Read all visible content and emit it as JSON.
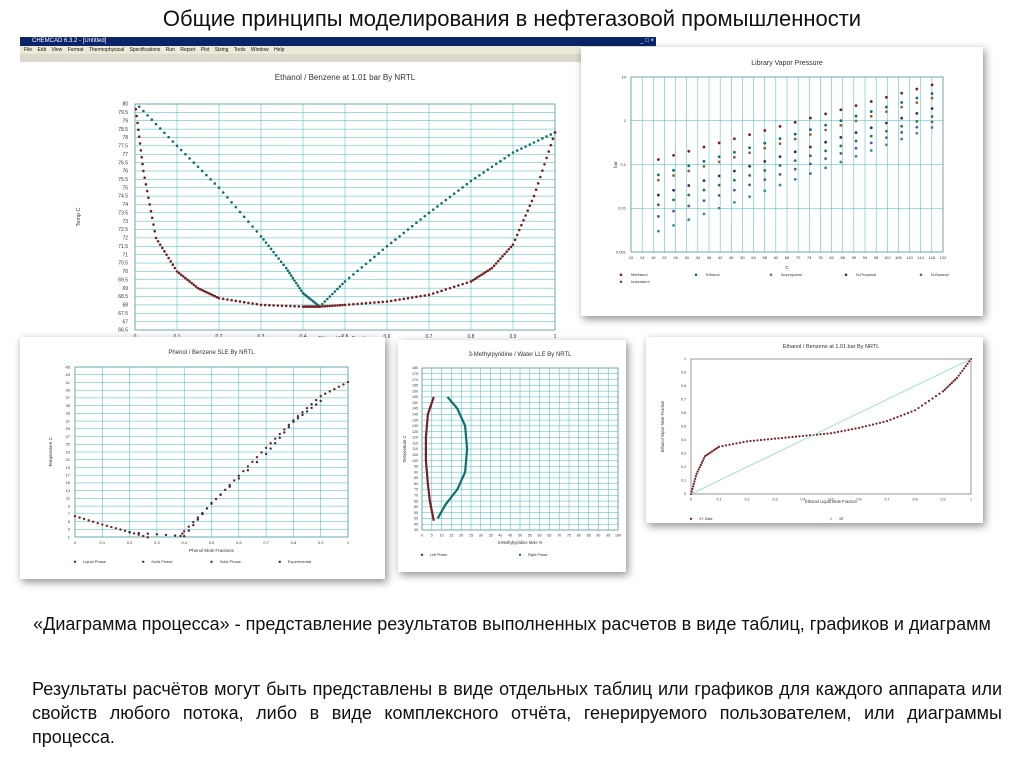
{
  "slide": {
    "title": "Общие принципы моделирования в нефтегазовой промышленности",
    "caption": "«Диаграмма процесса» - представление результатов выполненных расчетов в виде таблиц, графиков и диаграмм",
    "body": "Результаты расчётов могут быть представлены в виде отдельных таблиц или графиков для каждого аппарата или свойств любого потока, либо в виде комплексного отчёта, генерируемого пользователем, или диаграммы процесса."
  },
  "app_window": {
    "title": "CHEMCAD 6.3.2 - [Untitled]",
    "menu": [
      "File",
      "Edit",
      "View",
      "Format",
      "Thermophysical",
      "Specifications",
      "Run",
      "Report",
      "Plot",
      "Sizing",
      "Tools",
      "Window",
      "Help"
    ]
  },
  "colors": {
    "teal": "#0f6e6e",
    "red": "#7a1f1f",
    "grid": "#3fb8bd",
    "panel_title": "#333333"
  },
  "chart_data": [
    {
      "id": "ethanol-benzene-txy",
      "type": "line",
      "title": "Ethanol / Benzene at      1.01 bar By NRTL",
      "xlabel": "Ethanol Mole Fraction",
      "ylabel": "Temp C",
      "xlim": [
        0,
        1
      ],
      "ylim": [
        66.5,
        80
      ],
      "x_ticks": [
        "0",
        "0.1",
        "0.2",
        "0.3",
        "0.4",
        "0.5",
        "0.6",
        "0.7",
        "0.8",
        "0.9",
        "1"
      ],
      "y_ticks": [
        "80",
        "79.5",
        "79",
        "78.5",
        "78",
        "77.5",
        "77",
        "76.5",
        "76",
        "75.5",
        "75",
        "74.5",
        "74",
        "73.5",
        "73",
        "72.5",
        "72",
        "71.5",
        "71",
        "70.5",
        "70",
        "69.5",
        "69",
        "68.5",
        "68",
        "67.5",
        "67",
        "66.5"
      ],
      "grid": true,
      "series": [
        {
          "role": "vapor",
          "color": "#0f6e6e",
          "x": [
            0,
            0.1,
            0.2,
            0.3,
            0.36,
            0.4,
            0.44,
            0.5,
            0.6,
            0.7,
            0.8,
            0.9,
            1.0
          ],
          "y": [
            80.1,
            77.5,
            75.0,
            72.1,
            70.2,
            68.7,
            67.9,
            69.4,
            71.5,
            73.5,
            75.4,
            77.1,
            78.3
          ]
        },
        {
          "role": "liquid",
          "color": "#7a1f1f",
          "x": [
            0,
            0.02,
            0.05,
            0.1,
            0.15,
            0.2,
            0.3,
            0.4,
            0.44,
            0.5,
            0.6,
            0.7,
            0.8,
            0.85,
            0.9,
            0.95,
            1.0
          ],
          "y": [
            80.1,
            76.0,
            72.0,
            70.0,
            69.0,
            68.4,
            68.0,
            67.9,
            67.9,
            68.0,
            68.2,
            68.6,
            69.4,
            70.2,
            71.6,
            74.5,
            78.3
          ]
        }
      ]
    },
    {
      "id": "library-vapor-pressure",
      "type": "line",
      "title": "Library Vapor Pressure",
      "xlabel": "C",
      "ylabel": "bar",
      "xlim": [
        10,
        124
      ],
      "ylim": [
        0.001,
        10
      ],
      "yscale": "log",
      "x_ticks": [
        "10",
        "14",
        "18",
        "22",
        "26",
        "30",
        "34",
        "38",
        "42",
        "46",
        "50",
        "54",
        "58",
        "62",
        "66",
        "70",
        "74",
        "78",
        "82",
        "86",
        "90",
        "94",
        "98",
        "102",
        "106",
        "110",
        "114",
        "118",
        "122"
      ],
      "y_ticks": [
        "10",
        "1",
        "0.1",
        "0.01",
        "0.001"
      ],
      "grid": true,
      "legend_position": "bottom",
      "series": [
        {
          "name": "Methanol",
          "color": "#7a1f1f",
          "x": [
            20,
            120
          ],
          "y": [
            0.13,
            6.6
          ]
        },
        {
          "name": "Ethanol",
          "color": "#0f6e6e",
          "x": [
            20,
            120
          ],
          "y": [
            0.058,
            4.2
          ]
        },
        {
          "name": "Isopropanol",
          "color": "#8a6a3a",
          "x": [
            20,
            120
          ],
          "y": [
            0.044,
            3.3
          ]
        },
        {
          "name": "N-Propanol",
          "color": "#3a2a6a",
          "x": [
            20,
            120
          ],
          "y": [
            0.02,
            1.9
          ]
        },
        {
          "name": "N-Butanol",
          "color": "#5a5a9a",
          "x": [
            20,
            120
          ],
          "y": [
            0.0065,
            0.94
          ]
        },
        {
          "name": "Isobutanol",
          "color": "#2a7a3a",
          "x": [
            20,
            120
          ],
          "y": [
            0.012,
            1.25
          ]
        },
        {
          "name": "",
          "color": "#3a8aaa",
          "x": [
            20,
            120
          ],
          "y": [
            0.003,
            0.7
          ]
        }
      ]
    },
    {
      "id": "phenol-benzene-sle",
      "type": "line",
      "title": "Phenol / Benzene SLE By NRTL",
      "xlabel": "Phenol Mole Fractions",
      "ylabel": "Temperature C",
      "xlim": [
        0,
        1
      ],
      "ylim": [
        0,
        45
      ],
      "x_ticks": [
        "0",
        "0.1",
        "0.2",
        "0.3",
        "0.4",
        "0.5",
        "0.6",
        "0.7",
        "0.8",
        "0.9",
        "1"
      ],
      "y_ticks": [
        "45",
        "43",
        "41",
        "39",
        "37",
        "35",
        "33",
        "31",
        "29",
        "27",
        "25",
        "23",
        "21",
        "19",
        "17",
        "15",
        "13",
        "11",
        "9",
        "7",
        "5",
        "3",
        "1"
      ],
      "grid": true,
      "legend": [
        "Liquid Phase",
        "Solid Phase",
        "Solid Phase",
        "Experimental"
      ],
      "series": [
        {
          "name": "Liquid Phase",
          "color": "#7a1f1f",
          "x": [
            0,
            0.1,
            0.2,
            0.3,
            0.36,
            0.4,
            0.5,
            0.6,
            0.7,
            0.8,
            0.9,
            1.0
          ],
          "y": [
            5.5,
            3.3,
            1.3,
            -0.8,
            -2.2,
            1.5,
            8.8,
            16.2,
            23.6,
            30.9,
            37.3,
            41
          ]
        },
        {
          "name": "Experimental",
          "color": "#2a2a5a",
          "x": [
            0.2,
            0.4,
            0.5,
            0.7,
            0.8,
            0.9
          ],
          "y": [
            1.2,
            0.2,
            9,
            22,
            30.5,
            36
          ]
        }
      ]
    },
    {
      "id": "methylpyridine-water-lle",
      "type": "line",
      "title": "3-Methylpyridine / Water LLE By NRTL",
      "xlabel": "3-Methylpyridine Mole %",
      "ylabel": "Temperature C",
      "xlim": [
        0,
        100
      ],
      "ylim": [
        40,
        180
      ],
      "x_ticks": [
        "0",
        "5",
        "10",
        "15",
        "20",
        "25",
        "30",
        "35",
        "40",
        "45",
        "50",
        "55",
        "60",
        "65",
        "70",
        "75",
        "80",
        "85",
        "90",
        "95",
        "100"
      ],
      "y_ticks": [
        "180",
        "175",
        "170",
        "165",
        "160",
        "155",
        "150",
        "145",
        "140",
        "135",
        "130",
        "125",
        "120",
        "115",
        "110",
        "105",
        "100",
        "95",
        "90",
        "85",
        "80",
        "75",
        "70",
        "65",
        "60",
        "55",
        "50",
        "45",
        "40"
      ],
      "grid": true,
      "legend": [
        "Left Phase",
        "Right Phase"
      ],
      "series": [
        {
          "name": "Left Phase",
          "color": "#7a1f1f",
          "x": [
            6,
            3,
            2,
            2,
            3,
            4,
            6
          ],
          "y": [
            155,
            140,
            120,
            100,
            80,
            65,
            48
          ]
        },
        {
          "name": "Right Phase",
          "color": "#0f6e6e",
          "x": [
            13,
            18,
            22,
            23,
            22,
            18,
            12,
            8
          ],
          "y": [
            155,
            145,
            130,
            110,
            90,
            75,
            62,
            50
          ]
        }
      ]
    },
    {
      "id": "ethanol-benzene-xy",
      "type": "line",
      "title": "Ethanol / Benzene at      1.01 bar By NRTL",
      "xlabel": "Ethanol Liquid Mole Fraction",
      "ylabel": "Ethanol Vapor Mole Fraction",
      "xlim": [
        0,
        1
      ],
      "ylim": [
        0,
        1
      ],
      "x_ticks": [
        "0",
        "0.1",
        "0.2",
        "0.3",
        "0.4",
        "0.5",
        "0.6",
        "0.7",
        "0.8",
        "0.9",
        "1"
      ],
      "y_ticks": [
        "1",
        "0.9",
        "0.8",
        "0.7",
        "0.6",
        "0.5",
        "0.4",
        "0.3",
        "0.2",
        "0.1",
        "0"
      ],
      "grid": false,
      "legend": [
        "XY Data",
        "45°"
      ],
      "series": [
        {
          "name": "XY Data",
          "color": "#7a1f1f",
          "x": [
            0,
            0.02,
            0.05,
            0.1,
            0.2,
            0.3,
            0.4,
            0.5,
            0.6,
            0.7,
            0.8,
            0.9,
            0.95,
            1.0
          ],
          "y": [
            0,
            0.15,
            0.28,
            0.35,
            0.39,
            0.41,
            0.43,
            0.45,
            0.49,
            0.54,
            0.62,
            0.76,
            0.86,
            1.0
          ]
        },
        {
          "name": "45°",
          "color": "#8ad8d8",
          "x": [
            0,
            1
          ],
          "y": [
            0,
            1
          ]
        }
      ]
    }
  ]
}
